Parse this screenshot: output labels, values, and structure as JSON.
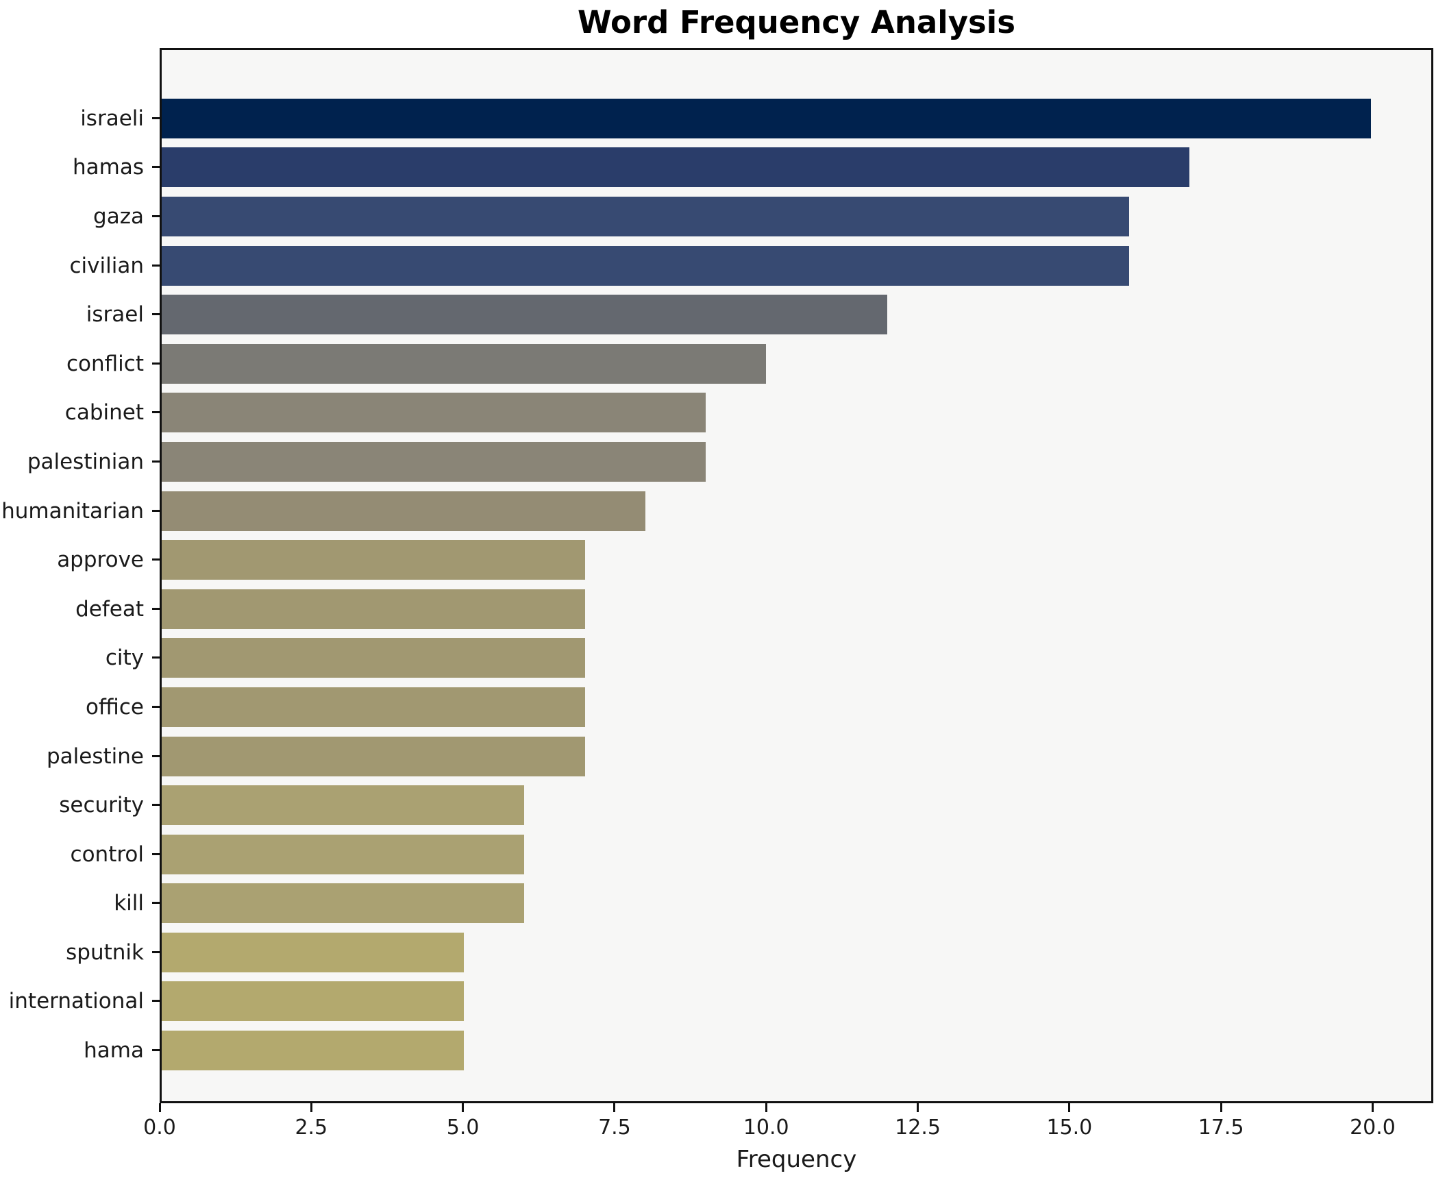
{
  "title": "Word Frequency Analysis",
  "chart_data": {
    "type": "bar",
    "orientation": "horizontal",
    "title": "Word Frequency Analysis",
    "xlabel": "Frequency",
    "ylabel": "",
    "xlim": [
      0,
      21
    ],
    "grid": false,
    "legend": false,
    "colormap": "cividis",
    "figure_background": "#ffffff",
    "axes_background": "#f7f7f6",
    "spine_color": "#111111",
    "x_tick_labels": [
      "0.0",
      "2.5",
      "5.0",
      "7.5",
      "10.0",
      "12.5",
      "15.0",
      "17.5",
      "20.0"
    ],
    "x_tick_values": [
      0,
      2.5,
      5,
      7.5,
      10,
      12.5,
      15,
      17.5,
      20
    ],
    "categories": [
      "israeli",
      "hamas",
      "gaza",
      "civilian",
      "israel",
      "conflict",
      "cabinet",
      "palestinian",
      "humanitarian",
      "approve",
      "defeat",
      "city",
      "office",
      "palestine",
      "security",
      "control",
      "kill",
      "sputnik",
      "international",
      "hama"
    ],
    "values": [
      20,
      17,
      16,
      16,
      12,
      10,
      9,
      9,
      8,
      7,
      7,
      7,
      7,
      7,
      6,
      6,
      6,
      5,
      5,
      5
    ],
    "bar_colors": [
      "#00224e",
      "#2a3d6a",
      "#374a72",
      "#374a72",
      "#64686f",
      "#7b7a75",
      "#8a8577",
      "#8a8577",
      "#948c74",
      "#a19871",
      "#a19871",
      "#a19871",
      "#a19871",
      "#a19871",
      "#aaa172",
      "#aaa172",
      "#aaa172",
      "#b3a96e",
      "#b3a96e",
      "#b3a96e"
    ]
  }
}
